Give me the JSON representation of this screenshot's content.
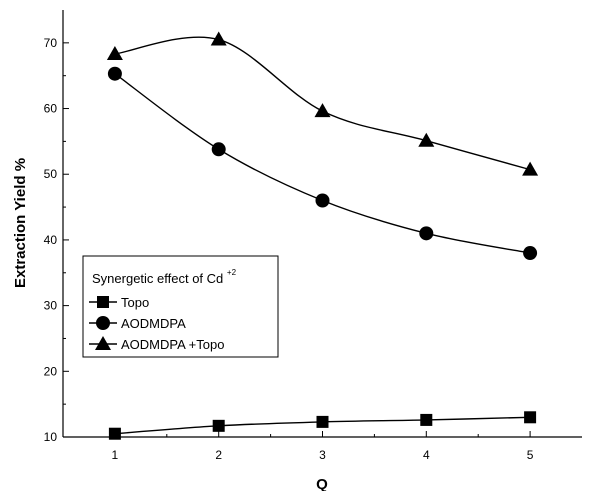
{
  "chart_data": {
    "type": "line",
    "title": "",
    "xlabel": "Q",
    "ylabel": "Extraction Yield %",
    "x": [
      1,
      2,
      3,
      4,
      5
    ],
    "xlim": [
      0.5,
      5.5
    ],
    "ylim": [
      10,
      75
    ],
    "xticks": [
      "1",
      "2",
      "3",
      "4",
      "5"
    ],
    "yticks": [
      "10",
      "20",
      "30",
      "40",
      "50",
      "60",
      "70"
    ],
    "grid": false,
    "legend_placement": "center-left",
    "legend_title": "Synergetic effect of  Cd",
    "legend_title_superscript": "+2",
    "series": [
      {
        "name": "Topo",
        "marker": "square",
        "values": [
          10.5,
          11.7,
          12.3,
          12.6,
          13.0
        ]
      },
      {
        "name": "AODMDPA",
        "marker": "circle",
        "values": [
          65.3,
          53.8,
          46.0,
          41.0,
          38.0
        ]
      },
      {
        "name": "AODMDPA +Topo",
        "marker": "triangle",
        "values": [
          68.3,
          70.5,
          59.6,
          55.1,
          50.7
        ]
      }
    ],
    "color": "#000000"
  }
}
